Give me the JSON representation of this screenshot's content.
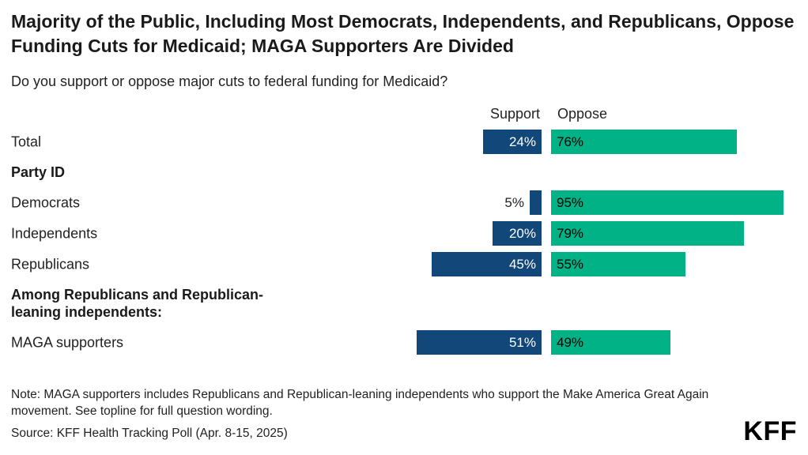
{
  "page": {
    "title": "Majority of the Public, Including Most Democrats, Independents, and Republicans, Oppose Funding Cuts for Medicaid; MAGA Supporters Are Divided",
    "subtitle": "Do you support or oppose major cuts to federal funding for Medicaid?",
    "note": "Note: MAGA supporters includes Republicans and Republican-leaning independents who support the Make America Great Again movement. See topline for full question wording.",
    "source": "Source: KFF Health Tracking Poll (Apr. 8-15, 2025)",
    "logo": "KFF"
  },
  "chart_data": {
    "type": "bar",
    "variant": "diverging-horizontal",
    "title": "Majority of the Public, Including Most Democrats, Independents, and Republicans, Oppose Funding Cuts for Medicaid; MAGA Supporters Are Divided",
    "question": "Do you support or oppose major cuts to federal funding for Medicaid?",
    "legend": [
      "Support",
      "Oppose"
    ],
    "legend_position": "top",
    "unit": "%",
    "colors": {
      "support": "#114779",
      "oppose": "#00B286"
    },
    "rows": [
      {
        "kind": "bar",
        "label": "Total",
        "support": 24,
        "oppose": 76
      },
      {
        "kind": "section",
        "label": "Party ID"
      },
      {
        "kind": "bar",
        "label": "Democrats",
        "support": 5,
        "oppose": 95
      },
      {
        "kind": "bar",
        "label": "Independents",
        "support": 20,
        "oppose": 79
      },
      {
        "kind": "bar",
        "label": "Republicans",
        "support": 45,
        "oppose": 55
      },
      {
        "kind": "section",
        "label": "Among Republicans and Republican-leaning independents:"
      },
      {
        "kind": "bar",
        "label": "MAGA supporters",
        "support": 51,
        "oppose": 49
      }
    ]
  }
}
